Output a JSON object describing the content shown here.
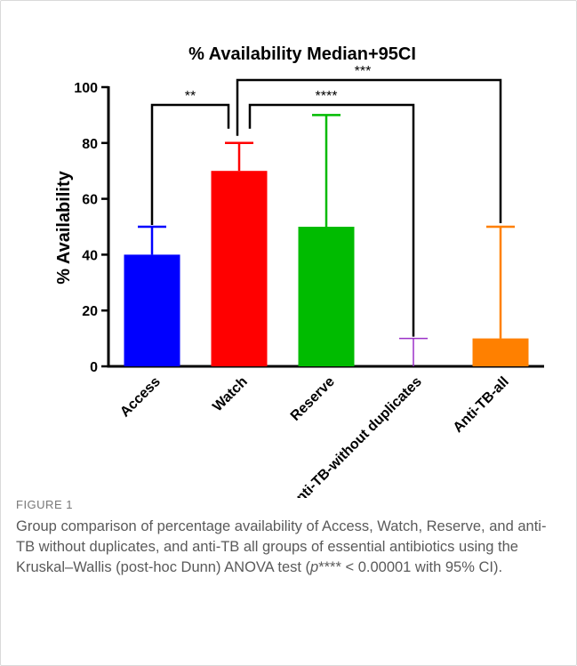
{
  "chart_data": {
    "type": "bar",
    "title": "% Availability Median+95CI",
    "ylabel": "% Availability",
    "xlabel": "",
    "ylim": [
      0,
      100
    ],
    "yticks": [
      0,
      20,
      40,
      60,
      80,
      100
    ],
    "grid": false,
    "categories": [
      "Access",
      "Watch",
      "Reserve",
      "Anti-TB-without duplicates",
      "Anti-TB-all"
    ],
    "values": [
      40,
      70,
      50,
      0,
      10
    ],
    "ci_upper": [
      50,
      80,
      90,
      10,
      50
    ],
    "colors": [
      "#0000ff",
      "#ff0000",
      "#00bb00",
      "#9b30c8",
      "#ff8000"
    ],
    "significance": [
      {
        "from": 0,
        "to": 1,
        "label": "**"
      },
      {
        "from": 1,
        "to": 3,
        "label": "****"
      },
      {
        "from": 1,
        "to": 4,
        "label": "***"
      }
    ]
  },
  "caption": {
    "label": "FIGURE 1",
    "text_before": "Group comparison of percentage availability of Access, Watch, Reserve, and anti-TB without duplicates, and anti-TB all groups of essential antibiotics using the Kruskal–Wallis (post-hoc Dunn) ANOVA test (",
    "p_symbol": "p",
    "text_after": "**** < 0.00001 with 95% CI)."
  }
}
